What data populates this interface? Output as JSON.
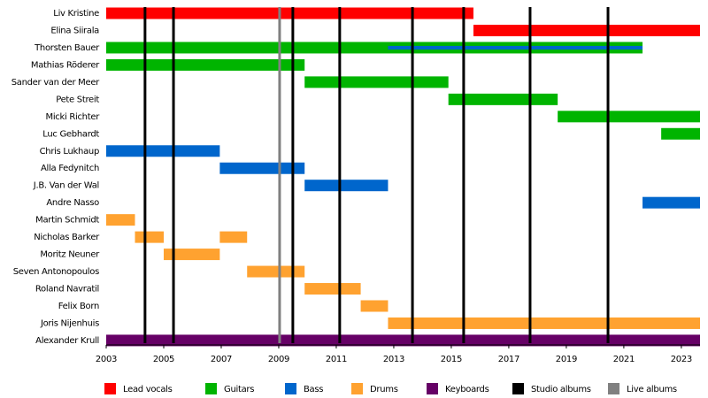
{
  "chart_data": {
    "type": "timeline",
    "xlim": [
      2003,
      2023.65
    ],
    "xticks": [
      2003,
      2005,
      2007,
      2009,
      2011,
      2013,
      2015,
      2017,
      2019,
      2021,
      2023
    ],
    "series": [
      {
        "name": "Lead vocals",
        "color": "#ff0000"
      },
      {
        "name": "Guitars",
        "color": "#00b400"
      },
      {
        "name": "Bass",
        "color": "#0066cc"
      },
      {
        "name": "Drums",
        "color": "#ffa230"
      },
      {
        "name": "Keyboards",
        "color": "#660066"
      }
    ],
    "members": [
      {
        "name": "Liv Kristine",
        "spans": [
          {
            "series": 0,
            "start": 2003,
            "end": 2015.77
          }
        ]
      },
      {
        "name": "Elina Siirala",
        "spans": [
          {
            "series": 0,
            "start": 2015.77,
            "end": 2023.65
          }
        ]
      },
      {
        "name": "Thorsten Bauer",
        "spans": [
          {
            "series": 1,
            "start": 2003,
            "end": 2021.65
          },
          {
            "series": 2,
            "start": 2012.8,
            "end": 2021.65
          }
        ]
      },
      {
        "name": "Mathias Röderer",
        "spans": [
          {
            "series": 1,
            "start": 2003,
            "end": 2009.9
          }
        ]
      },
      {
        "name": "Sander van der Meer",
        "spans": [
          {
            "series": 1,
            "start": 2009.9,
            "end": 2014.9
          }
        ]
      },
      {
        "name": "Pete Streit",
        "spans": [
          {
            "series": 1,
            "start": 2014.9,
            "end": 2018.7
          }
        ]
      },
      {
        "name": "Micki Richter",
        "spans": [
          {
            "series": 1,
            "start": 2018.7,
            "end": 2023.65
          }
        ]
      },
      {
        "name": "Luc Gebhardt",
        "spans": [
          {
            "series": 1,
            "start": 2022.3,
            "end": 2023.65
          }
        ]
      },
      {
        "name": "Chris Lukhaup",
        "spans": [
          {
            "series": 2,
            "start": 2003,
            "end": 2006.95
          }
        ]
      },
      {
        "name": "Alla Fedynitch",
        "spans": [
          {
            "series": 2,
            "start": 2006.95,
            "end": 2009.9
          }
        ]
      },
      {
        "name": "J.B. Van der Wal",
        "spans": [
          {
            "series": 2,
            "start": 2009.9,
            "end": 2012.8
          }
        ]
      },
      {
        "name": "Andre Nasso",
        "spans": [
          {
            "series": 2,
            "start": 2021.65,
            "end": 2023.65
          }
        ]
      },
      {
        "name": "Martin Schmidt",
        "spans": [
          {
            "series": 3,
            "start": 2003,
            "end": 2004
          }
        ]
      },
      {
        "name": "Nicholas Barker",
        "spans": [
          {
            "series": 3,
            "start": 2004,
            "end": 2005
          },
          {
            "series": 3,
            "start": 2006.95,
            "end": 2007.9
          }
        ]
      },
      {
        "name": "Moritz Neuner",
        "spans": [
          {
            "series": 3,
            "start": 2005,
            "end": 2006.95
          }
        ]
      },
      {
        "name": "Seven Antonopoulos",
        "spans": [
          {
            "series": 3,
            "start": 2007.9,
            "end": 2009.9
          }
        ]
      },
      {
        "name": "Roland Navratil",
        "spans": [
          {
            "series": 3,
            "start": 2009.9,
            "end": 2011.85
          }
        ]
      },
      {
        "name": "Felix Born",
        "spans": [
          {
            "series": 3,
            "start": 2011.85,
            "end": 2012.8
          }
        ]
      },
      {
        "name": "Joris Nijenhuis",
        "spans": [
          {
            "series": 3,
            "start": 2012.8,
            "end": 2023.65
          }
        ]
      },
      {
        "name": "Alexander Krull",
        "spans": [
          {
            "series": 4,
            "start": 2003,
            "end": 2023.65
          }
        ]
      }
    ],
    "events": [
      {
        "name": "Studio albums",
        "color": "#000000",
        "x": [
          2004.35,
          2005.34,
          2009.49,
          2011.12,
          2013.65,
          2015.43,
          2017.74,
          2020.45
        ]
      },
      {
        "name": "Live albums",
        "color": "#808080",
        "x": [
          2009.03
        ]
      }
    ]
  }
}
